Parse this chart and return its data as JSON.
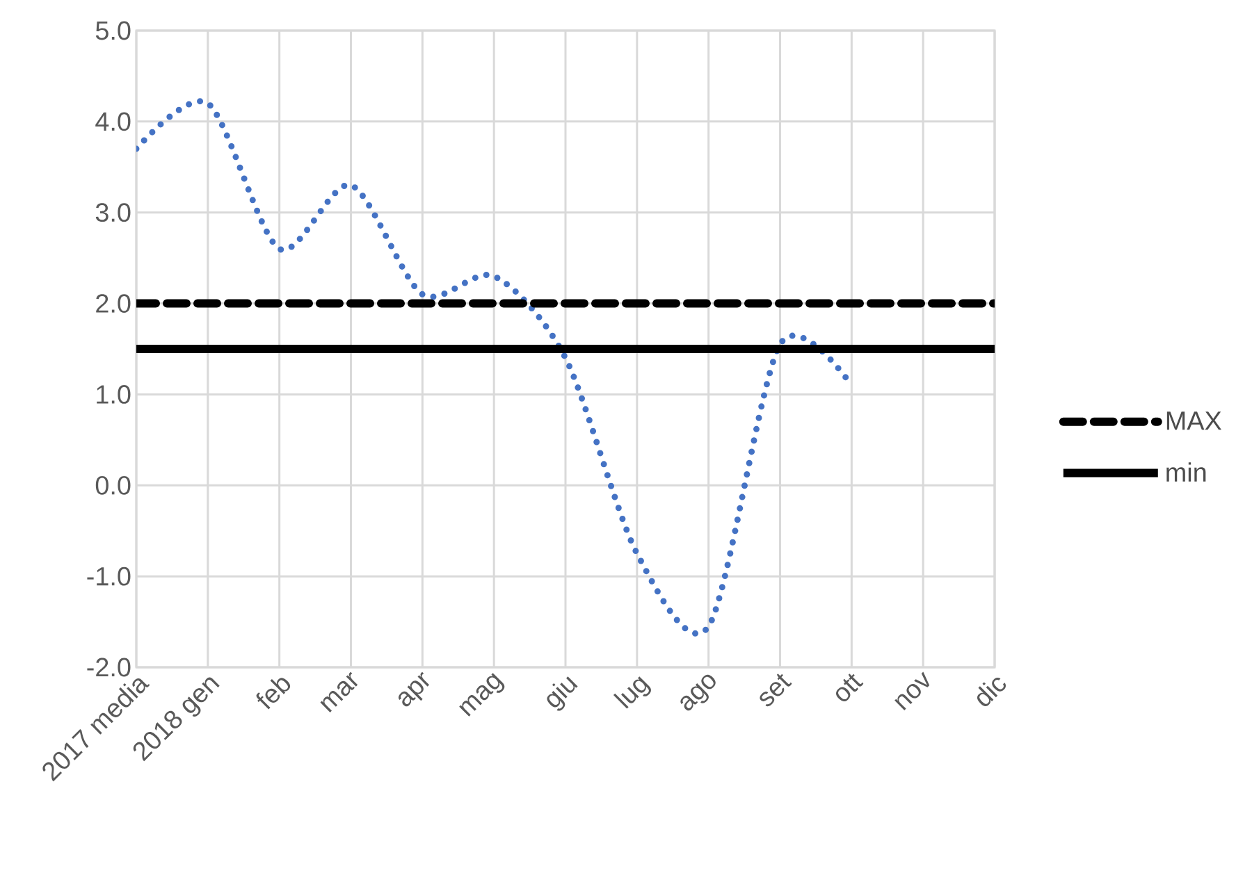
{
  "chart_data": {
    "type": "line",
    "categories": [
      "2017 media",
      "2018 gen",
      "feb",
      "mar",
      "apr",
      "mag",
      "giu",
      "lug",
      "ago",
      "set",
      "ott",
      "nov",
      "dic"
    ],
    "series": [
      {
        "color": "#4472c4",
        "line_style": "dotted",
        "values": [
          3.7,
          4.2,
          2.6,
          3.3,
          2.1,
          2.3,
          1.4,
          -0.75,
          -1.55,
          1.55,
          1.1,
          null,
          null
        ]
      },
      {
        "name": "MAX",
        "color": "#000000",
        "line_style": "dashed",
        "values": [
          2,
          2,
          2,
          2,
          2,
          2,
          2,
          2,
          2,
          2,
          2,
          2,
          2
        ]
      },
      {
        "name": "min",
        "color": "#000000",
        "line_style": "solid",
        "values": [
          1.5,
          1.5,
          1.5,
          1.5,
          1.5,
          1.5,
          1.5,
          1.5,
          1.5,
          1.5,
          1.5,
          1.5,
          1.5
        ]
      }
    ],
    "ylim": [
      -2,
      5
    ],
    "yticks": [
      {
        "value": -2,
        "label": "-2.0"
      },
      {
        "value": -1,
        "label": "-1.0"
      },
      {
        "value": 0,
        "label": "0.0"
      },
      {
        "value": 1,
        "label": "1.0"
      },
      {
        "value": 2,
        "label": "2.0"
      },
      {
        "value": 3,
        "label": "3.0"
      },
      {
        "value": 4,
        "label": "4.0"
      },
      {
        "value": 5,
        "label": "5.0"
      }
    ],
    "grid": true,
    "legend": "right",
    "marker": "none"
  }
}
